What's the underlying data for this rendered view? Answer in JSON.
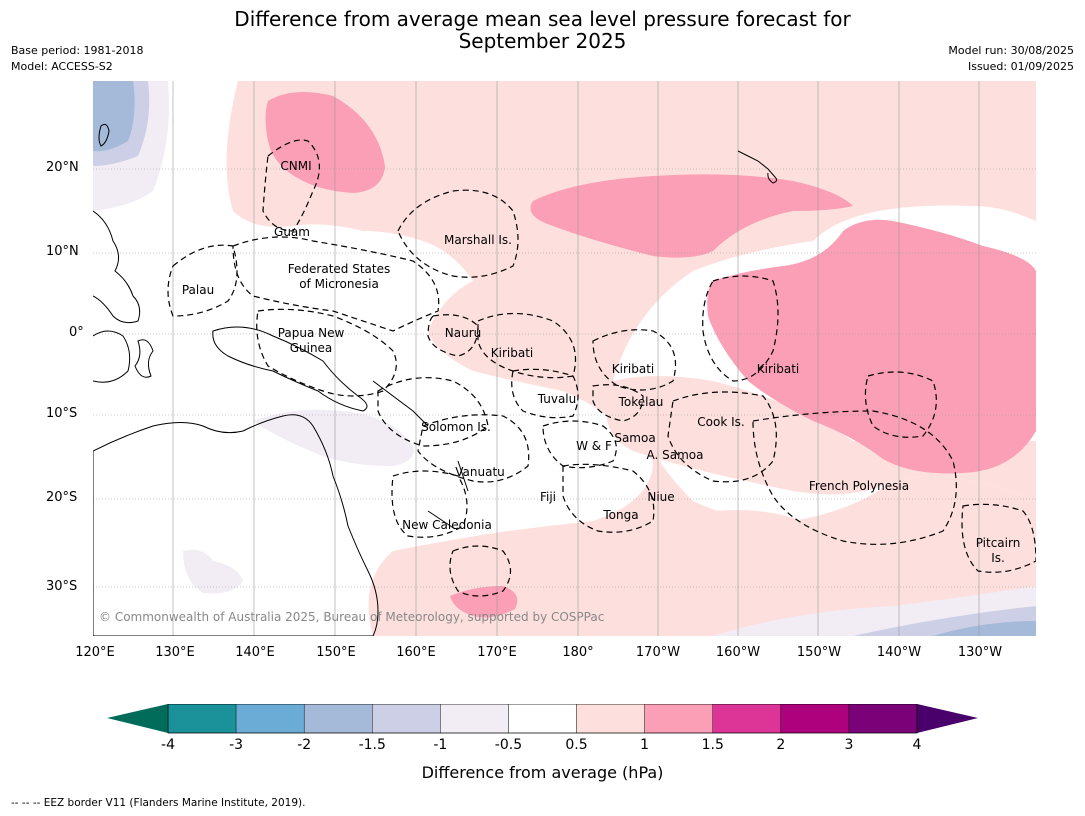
{
  "title_line1": "Difference from average mean sea level pressure forecast for",
  "title_line2": "September 2025",
  "meta_left": {
    "base_period": "Base period: 1981-2018",
    "model": "Model: ACCESS-S2"
  },
  "meta_right": {
    "model_run": "Model run: 30/08/2025",
    "issued": "Issued: 01/09/2025"
  },
  "lat_labels": [
    "20°N",
    "10°N",
    "0°",
    "10°S",
    "20°S",
    "30°S"
  ],
  "lon_labels": [
    "120°E",
    "130°E",
    "140°E",
    "150°E",
    "160°E",
    "170°E",
    "180°",
    "170°W",
    "160°W",
    "150°W",
    "140°W",
    "130°W"
  ],
  "places": {
    "cnmi": "CNMI",
    "guam": "Guam",
    "marshall": "Marshall Is.",
    "fsm1": "Federated States",
    "fsm2": "of Micronesia",
    "palau": "Palau",
    "png1": "Papua New",
    "png2": "Guinea",
    "nauru": "Nauru",
    "kiribati_w": "Kiribati",
    "kiribati_c": "Kiribati",
    "kiribati_e": "Kiribati",
    "tuvalu": "Tuvalu",
    "tokelau": "Tokelau",
    "cook": "Cook Is.",
    "solomon": "Solomon Is.",
    "wf": "W & F",
    "samoa": "Samoa",
    "asamoa": "A. Samoa",
    "vanuatu": "Vanuatu",
    "fiji": "Fiji",
    "niue": "Niue",
    "tonga": "Tonga",
    "new_caledonia": "New Caledonia",
    "french_polynesia": "French Polynesia",
    "pitcairn1": "Pitcairn",
    "pitcairn2": "Is."
  },
  "copyright": "© Commonwealth of Australia 2025, Bureau of Meteorology, supported by COSPPac",
  "colorbar": {
    "ticks": [
      "-4",
      "-3",
      "-2",
      "-1.5",
      "-1",
      "-0.5",
      "0.5",
      "1",
      "1.5",
      "2",
      "3",
      "4"
    ],
    "colors": [
      "#1b9199",
      "#6aacd6",
      "#a5b9d9",
      "#cdcfe6",
      "#f2ecf5",
      "#ffffff",
      "#fde0dd",
      "#fa9fb5",
      "#dd3497",
      "#ae017e",
      "#7a0177"
    ],
    "low_extend_color": "#016c59",
    "high_extend_color": "#49006a",
    "label": "Difference from average (hPa)"
  },
  "footnote": "--  --  -- EEZ border V11 (Flanders Marine Institute, 2019)."
}
